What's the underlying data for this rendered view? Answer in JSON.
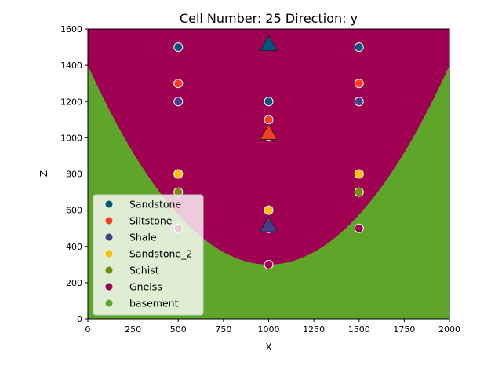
{
  "chart_data": {
    "type": "heatmap",
    "title": "Cell Number: 25 Direction: y",
    "xlabel": "X",
    "ylabel": "Z",
    "xlim": [
      0,
      2000
    ],
    "ylim": [
      0,
      1600
    ],
    "xticks": [
      0,
      250,
      500,
      750,
      1000,
      1250,
      1500,
      1750,
      2000
    ],
    "yticks": [
      0,
      200,
      400,
      600,
      800,
      1000,
      1200,
      1400,
      1600
    ],
    "grid": false,
    "legend_position": "lower-left",
    "units": [
      {
        "name": "Sandstone",
        "color": "#015482"
      },
      {
        "name": "Siltstone",
        "color": "#fa3d1e"
      },
      {
        "name": "Shale",
        "color": "#483d8c"
      },
      {
        "name": "Sandstone_2",
        "color": "#ffbe00"
      },
      {
        "name": "Schist",
        "color": "#728f02"
      },
      {
        "name": "Gneiss",
        "color": "#9f0052"
      },
      {
        "name": "basement",
        "color": "#5da629"
      }
    ],
    "layer_bases_at_center": [
      {
        "unit": "Sandstone",
        "z": 1200
      },
      {
        "unit": "Siltstone",
        "z": 1100
      },
      {
        "unit": "Shale",
        "z": 1010
      },
      {
        "unit": "Sandstone_2",
        "z": 600
      },
      {
        "unit": "Schist",
        "z": 500
      },
      {
        "unit": "Gneiss",
        "z": 300
      }
    ],
    "surface_points": [
      {
        "x": 500,
        "z": 1500,
        "unit": "Sandstone"
      },
      {
        "x": 1500,
        "z": 1500,
        "unit": "Sandstone"
      },
      {
        "x": 1000,
        "z": 1200,
        "unit": "Sandstone"
      },
      {
        "x": 500,
        "z": 1300,
        "unit": "Siltstone"
      },
      {
        "x": 1500,
        "z": 1300,
        "unit": "Siltstone"
      },
      {
        "x": 1000,
        "z": 1100,
        "unit": "Siltstone"
      },
      {
        "x": 500,
        "z": 1200,
        "unit": "Shale"
      },
      {
        "x": 1500,
        "z": 1200,
        "unit": "Shale"
      },
      {
        "x": 1000,
        "z": 1010,
        "unit": "Shale"
      },
      {
        "x": 500,
        "z": 800,
        "unit": "Sandstone_2"
      },
      {
        "x": 1500,
        "z": 800,
        "unit": "Sandstone_2"
      },
      {
        "x": 1000,
        "z": 600,
        "unit": "Sandstone_2"
      },
      {
        "x": 500,
        "z": 700,
        "unit": "Schist"
      },
      {
        "x": 1500,
        "z": 700,
        "unit": "Schist"
      },
      {
        "x": 1000,
        "z": 500,
        "unit": "Schist"
      },
      {
        "x": 500,
        "z": 500,
        "unit": "Gneiss"
      },
      {
        "x": 1500,
        "z": 500,
        "unit": "Gneiss"
      },
      {
        "x": 1000,
        "z": 300,
        "unit": "Gneiss"
      }
    ],
    "orientations": [
      {
        "x": 1000,
        "z": 1520,
        "unit": "Sandstone"
      },
      {
        "x": 1000,
        "z": 1030,
        "unit": "Siltstone"
      },
      {
        "x": 1000,
        "z": 520,
        "unit": "Shale"
      }
    ]
  }
}
